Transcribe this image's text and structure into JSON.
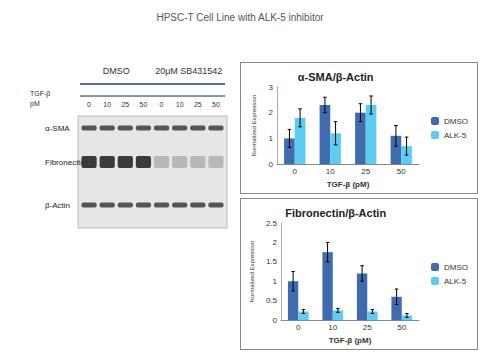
{
  "title": "HPSC-T Cell Line with ALK-5 inhibitor",
  "blot": {
    "groups": [
      "DMSO",
      "20μM SB431542"
    ],
    "dose_label": [
      "TGF-β",
      "pM"
    ],
    "lanes": [
      0,
      10,
      25,
      50,
      0,
      10,
      25,
      50
    ],
    "rows": [
      "α-SMA",
      "Fibronectin",
      "β-Actin"
    ]
  },
  "chart_data": [
    {
      "type": "bar",
      "title": "α-SMA/β-Actin",
      "x_label": "TGF-β (pM)",
      "y_label": "Normalized Expression",
      "categories": [
        "0",
        "10",
        "25",
        "50"
      ],
      "series": [
        {
          "name": "DMSO",
          "color": "#3f6cae",
          "values": [
            1.0,
            2.3,
            2.0,
            1.1
          ],
          "errors": [
            0.35,
            0.3,
            0.35,
            0.4
          ]
        },
        {
          "name": "ALK-5",
          "color": "#5ecbf0",
          "values": [
            1.8,
            1.2,
            2.3,
            0.7
          ],
          "errors": [
            0.35,
            0.45,
            0.35,
            0.35
          ]
        }
      ],
      "ylim": [
        0,
        3
      ],
      "yticks": [
        0,
        1,
        2,
        3
      ],
      "grid": false,
      "legend": "right"
    },
    {
      "type": "bar",
      "title": "Fibronectin/β-Actin",
      "x_label": "TGF-β (pM)",
      "y_label": "Normalized Expression",
      "categories": [
        "0",
        "10",
        "25",
        "50"
      ],
      "series": [
        {
          "name": "DMSO",
          "color": "#3f6cae",
          "values": [
            1.0,
            1.75,
            1.2,
            0.6
          ],
          "errors": [
            0.25,
            0.25,
            0.2,
            0.2
          ]
        },
        {
          "name": "ALK-5",
          "color": "#5ecbf0",
          "values": [
            0.22,
            0.25,
            0.22,
            0.12
          ],
          "errors": [
            0.05,
            0.05,
            0.05,
            0.05
          ]
        }
      ],
      "ylim": [
        0,
        2.5
      ],
      "yticks": [
        0,
        0.5,
        1,
        1.5,
        2,
        2.5
      ],
      "grid": false,
      "legend": "right"
    }
  ]
}
